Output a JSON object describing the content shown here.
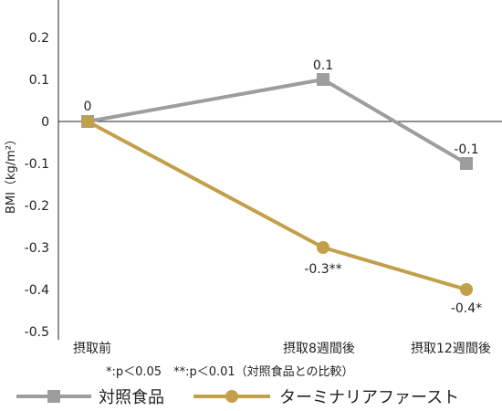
{
  "chart_data": {
    "type": "line",
    "ylabel": "BMI（kg/m²）",
    "ylim": [
      -0.5,
      0.25
    ],
    "yticks": [
      "0.2",
      "0.1",
      "0",
      "-0.1",
      "-0.2",
      "-0.3",
      "-0.4",
      "-0.5"
    ],
    "ytick_values": [
      0.2,
      0.1,
      0,
      -0.1,
      -0.2,
      -0.3,
      -0.4,
      -0.5
    ],
    "categories": [
      "摂取前",
      "摂取8週間後",
      "摂取12週間後"
    ],
    "series": [
      {
        "name": "対照食品",
        "values": [
          0,
          0.1,
          -0.1
        ],
        "data_labels": [
          "",
          "0.1",
          "-0.1"
        ],
        "color": "#9d9d9d",
        "marker": "square"
      },
      {
        "name": "ターミナリアファースト",
        "values": [
          0,
          -0.3,
          -0.4
        ],
        "data_labels": [
          "0",
          "-0.3**",
          "-0.4*"
        ],
        "color": "#c2a04a",
        "marker": "circle"
      }
    ],
    "note": "*:p＜0.05　**:p＜0.01（対照食品との比較）",
    "grid": false,
    "legend_position": "bottom"
  }
}
